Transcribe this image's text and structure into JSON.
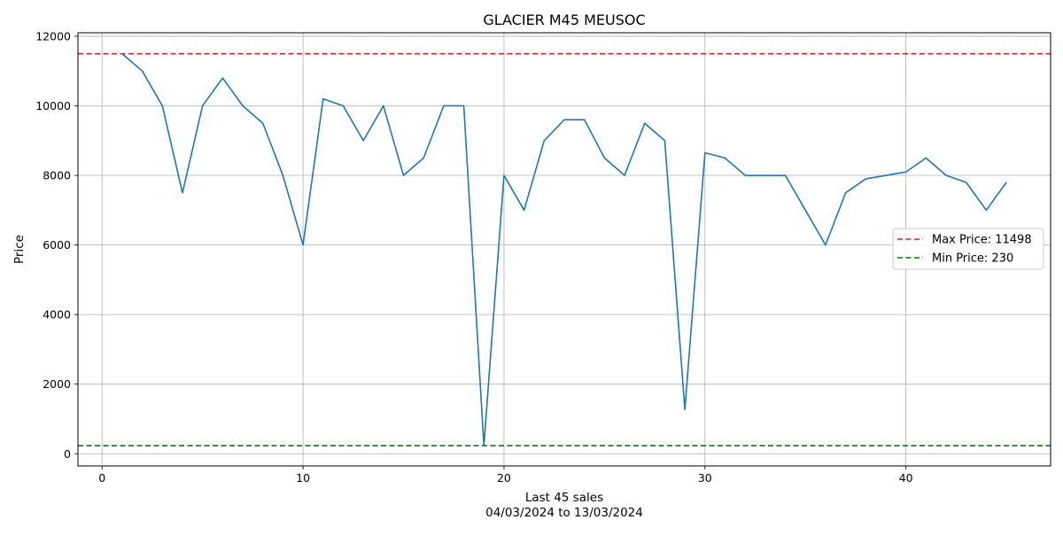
{
  "chart_data": {
    "type": "line",
    "title": "GLACIER M45 MEUSOC",
    "xlabel_line1": "Last 45 sales",
    "xlabel_line2": "04/03/2024 to 13/03/2024",
    "ylabel": "Price",
    "xlim": [
      -1.2,
      47.2
    ],
    "ylim": [
      -350,
      12100
    ],
    "x_ticks": [
      0,
      10,
      20,
      30,
      40
    ],
    "y_ticks": [
      0,
      2000,
      4000,
      6000,
      8000,
      10000,
      12000
    ],
    "grid": true,
    "legend_position": "center-right",
    "series": [
      {
        "color": "#1f77b4",
        "x": [
          1,
          2,
          3,
          4,
          5,
          6,
          7,
          8,
          9,
          10,
          11,
          12,
          13,
          14,
          15,
          16,
          17,
          18,
          19,
          20,
          21,
          22,
          23,
          24,
          25,
          26,
          27,
          28,
          29,
          30,
          31,
          32,
          33,
          34,
          35,
          36,
          37,
          38,
          39,
          40,
          41,
          42,
          43,
          44,
          45
        ],
        "values": [
          11498,
          11000,
          10000,
          7500,
          10000,
          10800,
          10000,
          9500,
          8000,
          6000,
          10200,
          10000,
          9000,
          10000,
          8000,
          8500,
          10000,
          10000,
          230,
          8000,
          7000,
          9000,
          9600,
          9600,
          8500,
          8000,
          9500,
          9000,
          1270,
          8650,
          8500,
          8000,
          8000,
          8000,
          7000,
          6000,
          7500,
          7900,
          8000,
          8100,
          8500,
          8000,
          7800,
          7000,
          7800
        ]
      }
    ],
    "reference_lines": [
      {
        "name": "Max Price: 11498",
        "value": 11498,
        "color": "#d62728"
      },
      {
        "name": "Min Price: 230",
        "value": 230,
        "color": "#008000"
      }
    ]
  }
}
